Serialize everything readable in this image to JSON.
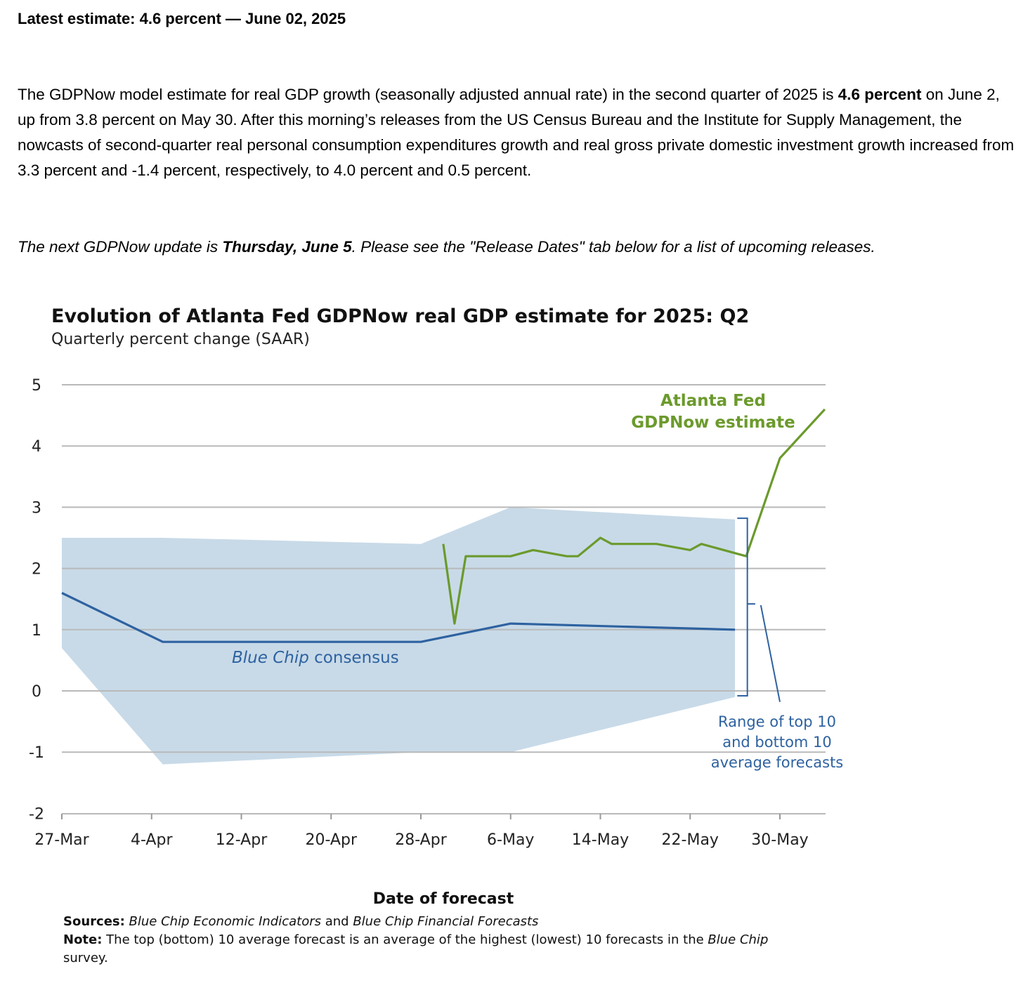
{
  "headline": "Latest estimate: 4.6 percent — June 02, 2025",
  "summary": {
    "part1": "The GDPNow model estimate for real GDP growth (seasonally adjusted annual rate) in the second quarter of 2025 is ",
    "bold": "4.6 percent",
    "part2": " on June 2, up from 3.8 percent on May 30. After this morning’s releases from the US Census Bureau and the Institute for Supply Management, the nowcasts of second-quarter real personal consumption expenditures growth and real gross private domestic investment growth increased from 3.3 percent and -1.4 percent, respectively, to 4.0 percent and 0.5 percent."
  },
  "next_update": {
    "part1": "The next GDPNow update is ",
    "bold": "Thursday, June 5",
    "part2": ". Please see the \"Release Dates\" tab below for a list of upcoming releases."
  },
  "chart_data": {
    "type": "line",
    "title": "Evolution of Atlanta Fed GDPNow real GDP estimate for 2025: Q2",
    "subtitle": "Quarterly percent change (SAAR)",
    "xlabel": "Date of forecast",
    "ylabel": "",
    "ylim": [
      -2,
      5
    ],
    "xlim": [
      0,
      68
    ],
    "x_unit": "days since 27-Mar",
    "yticks": [
      "5",
      "4",
      "3",
      "2",
      "1",
      "0",
      "-1",
      "-2"
    ],
    "ytick_values": [
      5,
      4,
      3,
      2,
      1,
      0,
      -1,
      -2
    ],
    "xticks": [
      {
        "label": "27-Mar",
        "x": 0
      },
      {
        "label": "4-Apr",
        "x": 8
      },
      {
        "label": "12-Apr",
        "x": 16
      },
      {
        "label": "20-Apr",
        "x": 24
      },
      {
        "label": "28-Apr",
        "x": 32
      },
      {
        "label": "6-May",
        "x": 40
      },
      {
        "label": "14-May",
        "x": 48
      },
      {
        "label": "22-May",
        "x": 56
      },
      {
        "label": "30-May",
        "x": 64
      }
    ],
    "grid": true,
    "series": [
      {
        "name": "Atlanta Fed GDPNow estimate",
        "label_lines": [
          "Atlanta Fed",
          "GDPNow estimate"
        ],
        "color": "#6b9a2c",
        "points": [
          [
            34,
            2.4
          ],
          [
            35,
            1.1
          ],
          [
            36,
            2.2
          ],
          [
            40,
            2.2
          ],
          [
            42,
            2.3
          ],
          [
            45,
            2.2
          ],
          [
            46,
            2.2
          ],
          [
            48,
            2.5
          ],
          [
            49,
            2.4
          ],
          [
            53,
            2.4
          ],
          [
            56,
            2.3
          ],
          [
            57,
            2.4
          ],
          [
            61,
            2.2
          ],
          [
            64,
            3.8
          ],
          [
            68,
            4.6
          ]
        ]
      },
      {
        "name": "Blue Chip consensus",
        "label_italic": "Blue Chip",
        "label_rest": " consensus",
        "color": "#2e62a0",
        "points": [
          [
            0,
            1.6
          ],
          [
            9,
            0.8
          ],
          [
            32,
            0.8
          ],
          [
            40,
            1.1
          ],
          [
            60,
            1.0
          ]
        ]
      }
    ],
    "range_band": {
      "name": "Range of top 10 and bottom 10 average forecasts",
      "label_lines": [
        "Range of top 10",
        "and bottom 10",
        "average forecasts"
      ],
      "color": "#c8dae8",
      "label_color": "#2e62a0",
      "upper": [
        [
          0,
          2.5
        ],
        [
          9,
          2.5
        ],
        [
          32,
          2.4
        ],
        [
          40,
          3.0
        ],
        [
          60,
          2.8
        ]
      ],
      "lower": [
        [
          0,
          0.7
        ],
        [
          9,
          -1.2
        ],
        [
          32,
          -1.0
        ],
        [
          40,
          -1.0
        ],
        [
          60,
          -0.1
        ]
      ]
    },
    "sources_label": "Sources:",
    "sources_italic1": "Blue Chip Economic Indicators",
    "sources_and": " and ",
    "sources_italic2": "Blue Chip Financial Forecasts",
    "note_label": "Note:",
    "note_text1": " The top (bottom) 10 average forecast is an average of the highest (lowest) 10 forecasts in the ",
    "note_italic": "Blue Chip",
    "note_text2": " survey."
  }
}
